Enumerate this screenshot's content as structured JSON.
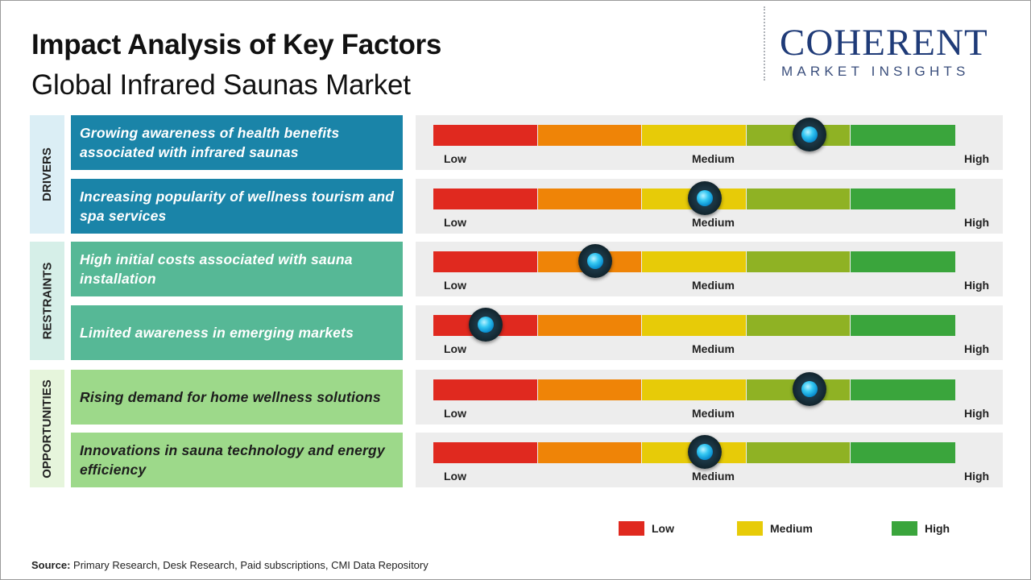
{
  "header": {
    "title": "Impact Analysis of Key Factors",
    "subtitle": "Global Infrared Saunas Market"
  },
  "logo": {
    "main": "COHERENT",
    "sub": "MARKET INSIGHTS"
  },
  "colors": {
    "low": "#e0291f",
    "medium_low": "#ef8407",
    "medium": "#e7cb08",
    "medium_high": "#8fb224",
    "high": "#3aa53c",
    "knob": "#0a8fd0"
  },
  "chart_data": {
    "type": "gauge",
    "scale_labels": {
      "low": "Low",
      "medium": "Medium",
      "high": "High"
    },
    "scale": [
      0,
      1
    ],
    "categories": [
      {
        "name": "DRIVERS",
        "factors": [
          {
            "label": "Growing awareness of health benefits associated with infrared saunas",
            "impact": 0.72
          },
          {
            "label": "Increasing popularity of wellness tourism and spa services",
            "impact": 0.52
          }
        ]
      },
      {
        "name": "RESTRAINTS",
        "factors": [
          {
            "label": "High initial costs associated with sauna installation",
            "impact": 0.31
          },
          {
            "label": "Limited awareness in emerging markets",
            "impact": 0.1
          }
        ]
      },
      {
        "name": "OPPORTUNITIES",
        "factors": [
          {
            "label": "Rising demand for home wellness solutions",
            "impact": 0.72
          },
          {
            "label": "Innovations in sauna technology and energy efficiency",
            "impact": 0.52
          }
        ]
      }
    ],
    "legend": [
      {
        "label": "Low",
        "color": "#e0291f"
      },
      {
        "label": "Medium",
        "color": "#e7cb08"
      },
      {
        "label": "High",
        "color": "#3aa53c"
      }
    ]
  },
  "source": {
    "label": "Source:",
    "text": "Primary Research, Desk Research, Paid subscriptions, CMI Data Repository"
  }
}
